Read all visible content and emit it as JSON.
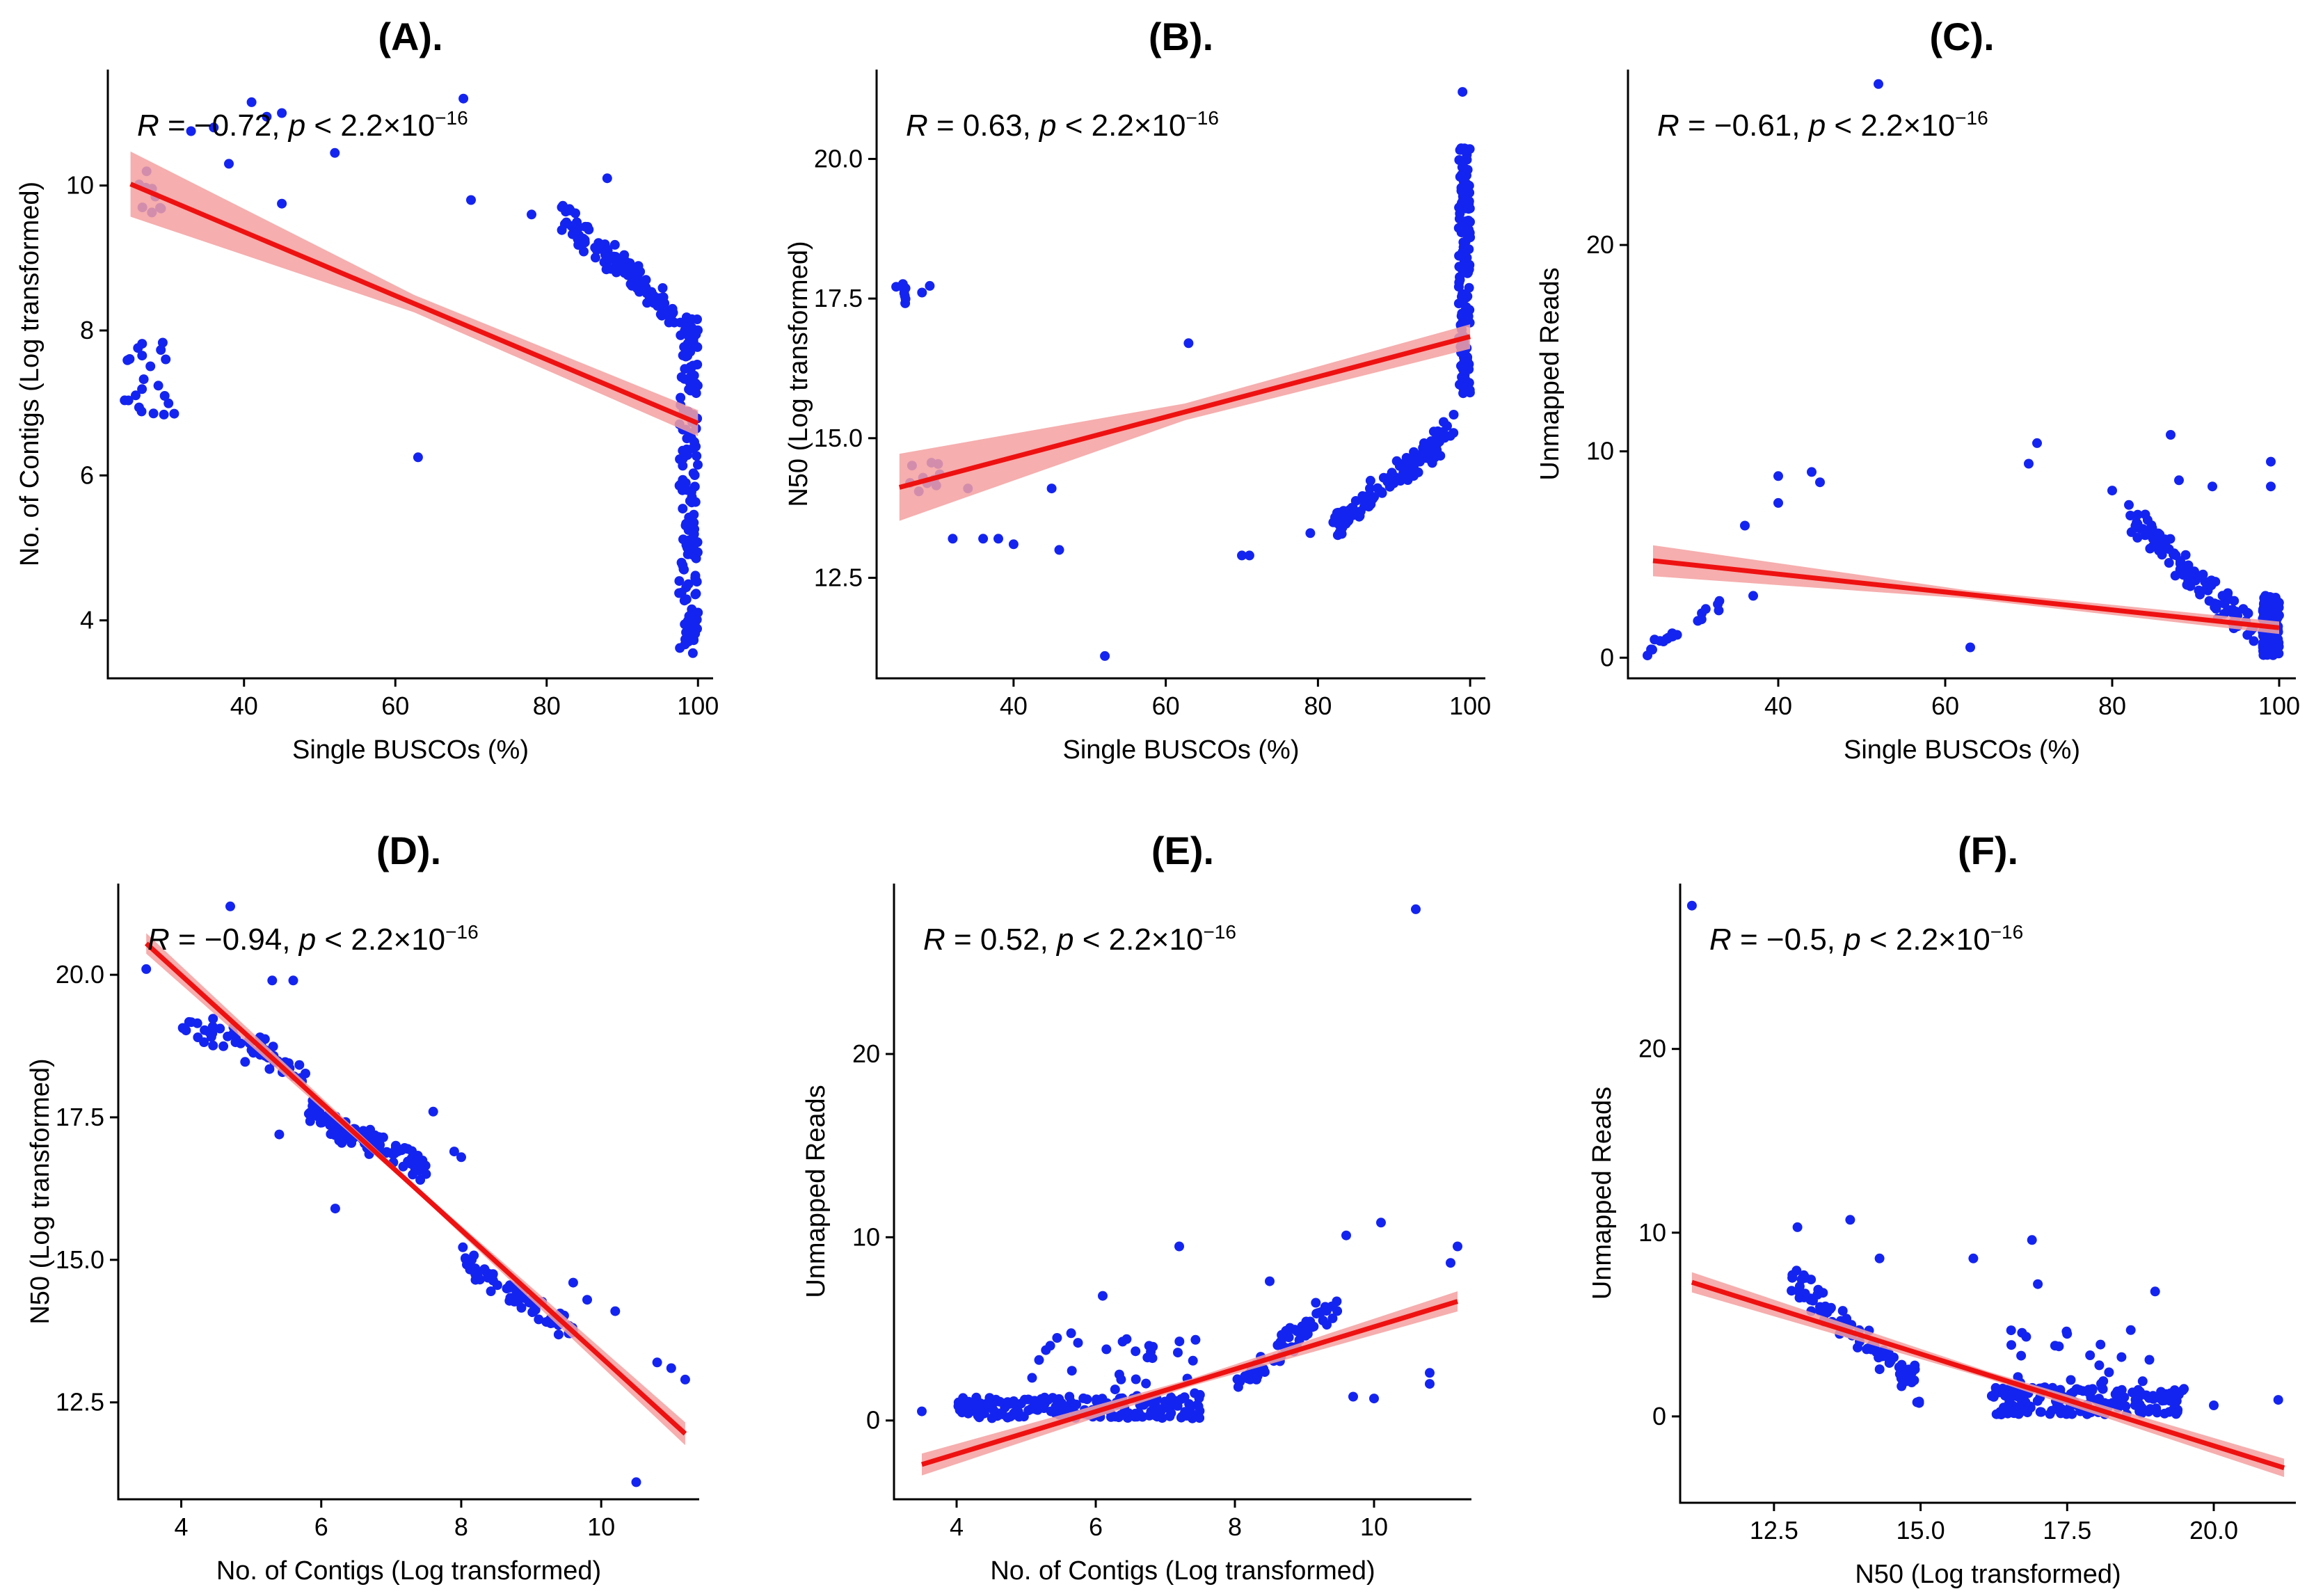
{
  "colors": {
    "points": "#1424f0",
    "fit_line": "#ee1111",
    "ci_band": "#f4a0a0"
  },
  "chart_data": [
    {
      "type": "scatter",
      "panel": "A",
      "title": "(A).",
      "xlabel": "Single BUSCOs (%)",
      "ylabel": "No. of Contigs (Log transformed)",
      "xlim": [
        22,
        102
      ],
      "ylim": [
        3.2,
        11.6
      ],
      "xticks": [
        40,
        60,
        80,
        100
      ],
      "yticks": [
        4,
        6,
        8,
        10
      ],
      "annotation": {
        "r_prefix": "R",
        "r_value": " = −0.72, ",
        "p_prefix": "p",
        "p_value": " < 2.2×10",
        "p_exp": "−16"
      },
      "fit": {
        "x1": 25,
        "y1": 10.02,
        "x2": 100,
        "y2": 6.72,
        "ci1": 0.45,
        "ci_mid": 0.12,
        "ci2": 0.18
      },
      "cluster_seed": 11,
      "clusters": [
        {
          "n": 22,
          "x": [
            24,
            31
          ],
          "y": [
            6.8,
            7.9
          ]
        },
        {
          "n": 10,
          "x": [
            26,
            30
          ],
          "y": [
            9.6,
            10.2
          ]
        },
        {
          "n": 110,
          "x": [
            82,
            97
          ],
          "y": [
            8.2,
            9.6
          ],
          "trend": [
            9.6,
            8.2
          ]
        },
        {
          "n": 150,
          "x": [
            97.5,
            100
          ],
          "y": [
            3.5,
            8.2
          ]
        }
      ],
      "points": [
        [
          33,
          10.75
        ],
        [
          36,
          10.8
        ],
        [
          38,
          10.3
        ],
        [
          41,
          11.15
        ],
        [
          43,
          10.95
        ],
        [
          45,
          11.0
        ],
        [
          45,
          9.75
        ],
        [
          52,
          10.45
        ],
        [
          63,
          6.25
        ],
        [
          69,
          11.2
        ],
        [
          70,
          9.8
        ],
        [
          78,
          9.6
        ],
        [
          82,
          9.7
        ],
        [
          88,
          10.1
        ]
      ]
    },
    {
      "type": "scatter",
      "panel": "B",
      "title": "(B).",
      "xlabel": "Single BUSCOs (%)",
      "ylabel": "N50 (Log transformed)",
      "xlim": [
        22,
        102
      ],
      "ylim": [
        10.7,
        21.6
      ],
      "xticks": [
        40,
        60,
        80,
        100
      ],
      "yticks": [
        12.5,
        15.0,
        17.5,
        20.0
      ],
      "annotation": {
        "r_prefix": "R",
        "r_value": " = 0.63, ",
        "p_prefix": "p",
        "p_value": " < 2.2×10",
        "p_exp": "−16"
      },
      "fit": {
        "x1": 25,
        "y1": 14.12,
        "x2": 100,
        "y2": 16.82,
        "ci1": 0.6,
        "ci_mid": 0.15,
        "ci2": 0.22
      },
      "cluster_seed": 23,
      "clusters": [
        {
          "n": 10,
          "x": [
            24,
            31
          ],
          "y": [
            17.4,
            17.8
          ]
        },
        {
          "n": 10,
          "x": [
            26,
            31
          ],
          "y": [
            14.0,
            14.6
          ]
        },
        {
          "n": 130,
          "x": [
            82,
            98
          ],
          "y": [
            13.4,
            15.2
          ],
          "trend": [
            13.4,
            15.2
          ]
        },
        {
          "n": 150,
          "x": [
            98.5,
            100
          ],
          "y": [
            15.8,
            20.2
          ]
        }
      ],
      "points": [
        [
          32,
          13.2
        ],
        [
          34,
          14.1
        ],
        [
          36,
          13.2
        ],
        [
          38,
          13.2
        ],
        [
          40,
          13.1
        ],
        [
          45,
          14.1
        ],
        [
          46,
          13.0
        ],
        [
          52,
          11.1
        ],
        [
          63,
          16.7
        ],
        [
          70,
          12.9
        ],
        [
          71,
          12.9
        ],
        [
          79,
          13.3
        ],
        [
          99,
          21.2
        ]
      ]
    },
    {
      "type": "scatter",
      "panel": "C",
      "title": "(C).",
      "xlabel": "Single BUSCOs (%)",
      "ylabel": "Unmapped Reads",
      "xlim": [
        22,
        102
      ],
      "ylim": [
        -1,
        28.5
      ],
      "xticks": [
        40,
        60,
        80,
        100
      ],
      "yticks": [
        0,
        10,
        20
      ],
      "annotation": {
        "r_prefix": "R",
        "r_value": " = −0.61, ",
        "p_prefix": "p",
        "p_value": " < 2.2×10",
        "p_exp": "−16"
      },
      "fit": {
        "x1": 25,
        "y1": 4.7,
        "x2": 100,
        "y2": 1.45,
        "ci1": 0.75,
        "ci_mid": 0.2,
        "ci2": 0.3
      },
      "cluster_seed": 37,
      "clusters": [
        {
          "n": 22,
          "x": [
            24,
            33
          ],
          "y": [
            0.3,
            2.6
          ],
          "trend": [
            0.3,
            2.6
          ]
        },
        {
          "n": 110,
          "x": [
            82,
            97
          ],
          "y": [
            1.2,
            6.8
          ],
          "trend": [
            6.8,
            1.2
          ]
        },
        {
          "n": 150,
          "x": [
            98,
            100
          ],
          "y": [
            0.1,
            3.0
          ]
        }
      ],
      "points": [
        [
          36,
          6.4
        ],
        [
          37,
          3.0
        ],
        [
          40,
          8.8
        ],
        [
          40,
          7.5
        ],
        [
          44,
          9.0
        ],
        [
          45,
          8.5
        ],
        [
          52,
          27.8
        ],
        [
          63,
          0.5
        ],
        [
          70,
          9.4
        ],
        [
          71,
          10.4
        ],
        [
          80,
          8.1
        ],
        [
          82,
          7.4
        ],
        [
          87,
          10.8
        ],
        [
          88,
          8.6
        ],
        [
          92,
          8.3
        ],
        [
          99,
          9.5
        ],
        [
          99,
          8.3
        ]
      ]
    },
    {
      "type": "scatter",
      "panel": "D",
      "title": "(D).",
      "xlabel": "No. of Contigs (Log transformed)",
      "ylabel": "N50 (Log transformed)",
      "xlim": [
        3.1,
        11.4
      ],
      "ylim": [
        10.8,
        21.6
      ],
      "xticks": [
        4,
        6,
        8,
        10
      ],
      "yticks": [
        12.5,
        15.0,
        17.5,
        20.0
      ],
      "annotation": {
        "r_prefix": "R",
        "r_value": " = −0.94, ",
        "p_prefix": "p",
        "p_value": " < 2.2×10",
        "p_exp": "−16"
      },
      "fit": {
        "x1": 3.5,
        "y1": 20.55,
        "x2": 11.2,
        "y2": 11.95,
        "ci1": 0.18,
        "ci_mid": 0.05,
        "ci2": 0.2
      },
      "cluster_seed": 41,
      "clusters": [
        {
          "n": 55,
          "x": [
            4,
            5.8
          ],
          "y": [
            18.0,
            19.6
          ],
          "trend": [
            19.2,
            18.3
          ]
        },
        {
          "n": 110,
          "x": [
            5.8,
            7.5
          ],
          "y": [
            16.2,
            17.9
          ],
          "trend": [
            17.6,
            16.6
          ]
        },
        {
          "n": 70,
          "x": [
            8,
            9.6
          ],
          "y": [
            13.6,
            15.1
          ],
          "trend": [
            15.0,
            13.7
          ]
        }
      ],
      "points": [
        [
          3.5,
          20.1
        ],
        [
          4.7,
          21.2
        ],
        [
          5.3,
          19.9
        ],
        [
          5.6,
          19.9
        ],
        [
          5.4,
          17.2
        ],
        [
          6.2,
          15.9
        ],
        [
          7.6,
          17.6
        ],
        [
          7.9,
          16.9
        ],
        [
          8.0,
          16.8
        ],
        [
          9.6,
          14.6
        ],
        [
          9.8,
          14.3
        ],
        [
          10.2,
          14.1
        ],
        [
          10.8,
          13.2
        ],
        [
          11.0,
          13.1
        ],
        [
          11.2,
          12.9
        ],
        [
          10.5,
          11.1
        ]
      ]
    },
    {
      "type": "scatter",
      "panel": "E",
      "title": "(E).",
      "xlabel": "No. of Contigs (Log transformed)",
      "ylabel": "Unmapped Reads",
      "xlim": [
        3.1,
        11.4
      ],
      "ylim": [
        -4.3,
        29.3
      ],
      "xticks": [
        4,
        6,
        8,
        10
      ],
      "yticks": [
        0,
        10,
        20
      ],
      "annotation": {
        "r_prefix": "R",
        "r_value": " = 0.52, ",
        "p_prefix": "p",
        "p_value": " < 2.2×10",
        "p_exp": "−16"
      },
      "fit": {
        "x1": 3.5,
        "y1": -2.4,
        "x2": 11.2,
        "y2": 6.5,
        "ci1": 0.6,
        "ci_mid": 0.2,
        "ci2": 0.55
      },
      "cluster_seed": 53,
      "clusters": [
        {
          "n": 200,
          "x": [
            4,
            7.5
          ],
          "y": [
            0.1,
            1.3
          ]
        },
        {
          "n": 30,
          "x": [
            5,
            7.5
          ],
          "y": [
            1.3,
            5.0
          ]
        },
        {
          "n": 65,
          "x": [
            8,
            9.5
          ],
          "y": [
            1.5,
            7.0
          ],
          "trend": [
            2.0,
            6.5
          ]
        }
      ],
      "points": [
        [
          3.5,
          0.5
        ],
        [
          6.1,
          6.8
        ],
        [
          7.2,
          9.5
        ],
        [
          8.5,
          7.6
        ],
        [
          9.6,
          10.1
        ],
        [
          10.1,
          10.8
        ],
        [
          9.7,
          1.3
        ],
        [
          10.0,
          1.2
        ],
        [
          10.6,
          27.9
        ],
        [
          10.8,
          2.6
        ],
        [
          10.8,
          2.0
        ],
        [
          11.1,
          8.6
        ],
        [
          11.2,
          9.5
        ]
      ]
    },
    {
      "type": "scatter",
      "panel": "F",
      "title": "(F).",
      "xlabel": "N50 (Log transformed)",
      "ylabel": "Unmapped Reads",
      "xlim": [
        10.9,
        21.4
      ],
      "ylim": [
        -4.7,
        29.0
      ],
      "xticks": [
        12.5,
        15.0,
        17.5,
        20.0
      ],
      "yticks": [
        0,
        10,
        20
      ],
      "annotation": {
        "r_prefix": "R",
        "r_value": " = −0.5, ",
        "p_prefix": "p",
        "p_value": " < 2.2×10",
        "p_exp": "−16"
      },
      "fit": {
        "x1": 11.1,
        "y1": 7.3,
        "x2": 21.2,
        "y2": -2.8,
        "ci1": 0.55,
        "ci_mid": 0.2,
        "ci2": 0.5
      },
      "cluster_seed": 67,
      "clusters": [
        {
          "n": 90,
          "x": [
            12.8,
            15.0
          ],
          "y": [
            1.2,
            7.5
          ],
          "trend": [
            7.5,
            1.5
          ]
        },
        {
          "n": 170,
          "x": [
            16.2,
            19.5
          ],
          "y": [
            0.1,
            1.6
          ]
        },
        {
          "n": 22,
          "x": [
            16.5,
            19
          ],
          "y": [
            1.6,
            4.8
          ]
        }
      ],
      "points": [
        [
          11.1,
          27.8
        ],
        [
          12.9,
          10.3
        ],
        [
          13.8,
          10.7
        ],
        [
          14.3,
          8.6
        ],
        [
          15.9,
          8.6
        ],
        [
          16.9,
          9.6
        ],
        [
          17.0,
          7.2
        ],
        [
          19.0,
          6.8
        ],
        [
          20.0,
          0.6
        ],
        [
          21.1,
          0.9
        ]
      ]
    }
  ]
}
